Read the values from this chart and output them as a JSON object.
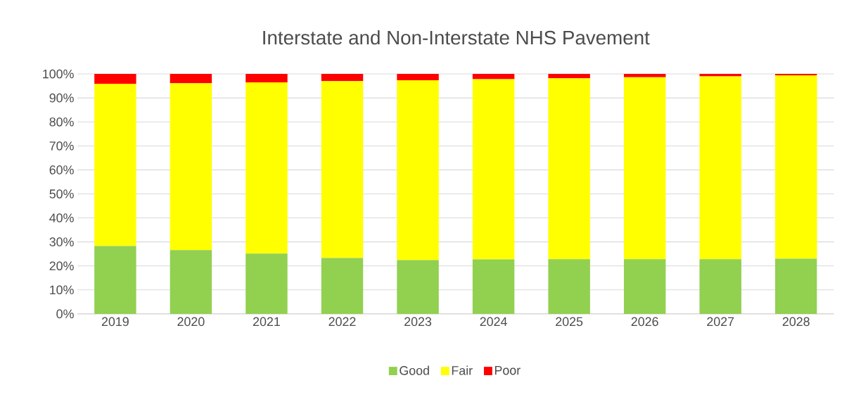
{
  "chart_data": {
    "type": "bar",
    "title": "Interstate and Non-Interstate NHS Pavement",
    "stacked": true,
    "categories": [
      "2019",
      "2020",
      "2021",
      "2022",
      "2023",
      "2024",
      "2025",
      "2026",
      "2027",
      "2028"
    ],
    "series": [
      {
        "name": "Good",
        "color": "#92d050",
        "values": [
          28.3,
          26.6,
          25.1,
          23.3,
          22.4,
          22.7,
          22.8,
          22.8,
          22.8,
          23.0
        ]
      },
      {
        "name": "Fair",
        "color": "#ffff00",
        "values": [
          67.6,
          69.5,
          71.4,
          73.7,
          75.0,
          75.1,
          75.4,
          75.8,
          76.2,
          76.4
        ]
      },
      {
        "name": "Poor",
        "color": "#ff0000",
        "values": [
          4.1,
          3.9,
          3.5,
          3.0,
          2.6,
          2.2,
          1.8,
          1.4,
          1.0,
          0.6
        ]
      }
    ],
    "ylim": [
      0,
      100
    ],
    "yticks": [
      {
        "value": 0,
        "label": "0%"
      },
      {
        "value": 10,
        "label": "10%"
      },
      {
        "value": 20,
        "label": "20%"
      },
      {
        "value": 30,
        "label": "30%"
      },
      {
        "value": 40,
        "label": "40%"
      },
      {
        "value": 50,
        "label": "50%"
      },
      {
        "value": 60,
        "label": "60%"
      },
      {
        "value": 70,
        "label": "70%"
      },
      {
        "value": 80,
        "label": "80%"
      },
      {
        "value": 90,
        "label": "90%"
      },
      {
        "value": 100,
        "label": "100%"
      }
    ],
    "grid": "y",
    "legend": "bottom"
  }
}
